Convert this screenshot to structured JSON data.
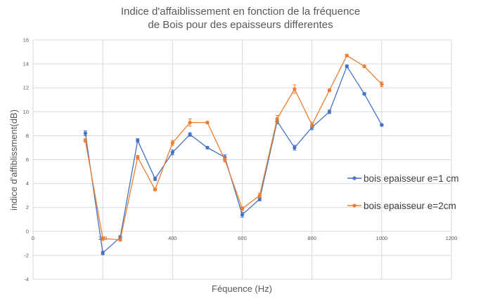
{
  "chart_data": {
    "type": "scatter",
    "title_lines": [
      "Indice d'affaiblissement en fonction de la fréquence",
      "de Bois pour des epaisseurs differentes"
    ],
    "xlabel": "Féquence (Hz)",
    "ylabel": "indice d'affiblissment(dB)",
    "xlim": [
      0,
      1200
    ],
    "ylim": [
      -4,
      16
    ],
    "xticks": [
      0,
      200,
      400,
      600,
      800,
      1000,
      1200
    ],
    "yticks": [
      -4,
      -2,
      0,
      2,
      4,
      6,
      8,
      10,
      12,
      14,
      16
    ],
    "grid": true,
    "legend_position": "right",
    "series": [
      {
        "name": "bois epaisseur e=1 cm",
        "color": "#4472C4",
        "x": [
          150,
          200,
          250,
          300,
          350,
          400,
          450,
          500,
          550,
          600,
          650,
          700,
          750,
          800,
          850,
          900,
          950,
          1000
        ],
        "y": [
          8.2,
          -1.8,
          -0.5,
          7.6,
          4.4,
          6.6,
          8.1,
          7.0,
          6.2,
          1.4,
          2.7,
          9.2,
          7.0,
          8.7,
          10.0,
          13.8,
          11.5,
          8.9
        ],
        "err": [
          0.2,
          0.15,
          0.15,
          0.15,
          0.15,
          0.2,
          0.15,
          0.1,
          0.2,
          0.2,
          0.15,
          0.2,
          0.2,
          0.2,
          0.15,
          0.1,
          0.1,
          0.1
        ]
      },
      {
        "name": "bois epaisseur e=2cm",
        "color": "#ED7D31",
        "x": [
          150,
          200,
          250,
          300,
          350,
          400,
          450,
          500,
          550,
          600,
          650,
          700,
          750,
          800,
          850,
          900,
          950,
          1000
        ],
        "y": [
          7.6,
          -0.6,
          -0.7,
          6.2,
          3.5,
          7.4,
          9.1,
          9.1,
          6.0,
          1.9,
          3.0,
          9.4,
          11.9,
          8.9,
          11.8,
          14.7,
          13.8,
          12.3
        ],
        "err": [
          0.15,
          0.15,
          0.1,
          0.15,
          0.1,
          0.2,
          0.3,
          0.1,
          0.2,
          0.15,
          0.2,
          0.3,
          0.35,
          0.2,
          0.1,
          0.1,
          0.1,
          0.2
        ]
      }
    ]
  }
}
